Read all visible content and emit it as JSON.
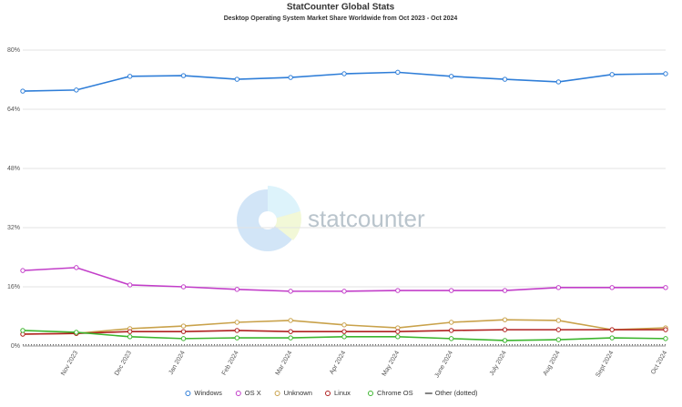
{
  "chart_data": {
    "type": "line",
    "title": "StatCounter Global Stats",
    "subtitle": "Desktop Operating System Market Share Worldwide from Oct 2023 - Oct 2024",
    "watermark": "statcounter",
    "categories": [
      null,
      "Nov 2023",
      "Dec 2023",
      "Jan 2024",
      "Feb 2024",
      "Mar 2024",
      "Apr 2024",
      "May 2024",
      "June 2024",
      "July 2024",
      "Aug 2024",
      "Sept 2024",
      "Oct 2024"
    ],
    "series": [
      {
        "name": "Windows",
        "color": "#2f7ed8",
        "values": [
          68.9,
          69.2,
          72.9,
          73.1,
          72.1,
          72.6,
          73.6,
          74.0,
          72.9,
          72.1,
          71.4,
          73.4,
          73.6
        ]
      },
      {
        "name": "OS X",
        "color": "#c23ec9",
        "values": [
          20.4,
          21.2,
          16.5,
          16.0,
          15.3,
          14.8,
          14.8,
          15.0,
          15.0,
          15.0,
          15.8,
          15.8,
          15.8
        ]
      },
      {
        "name": "Unknown",
        "color": "#c9a24b",
        "values": [
          3.2,
          3.4,
          4.7,
          5.4,
          6.4,
          6.9,
          5.7,
          4.9,
          6.4,
          7.1,
          6.9,
          4.4,
          4.9
        ]
      },
      {
        "name": "Linux",
        "color": "#b02020",
        "values": [
          3.2,
          3.4,
          3.9,
          3.9,
          4.2,
          3.9,
          3.9,
          3.9,
          4.2,
          4.4,
          4.4,
          4.4,
          4.4
        ]
      },
      {
        "name": "Chrome OS",
        "color": "#3cb52e",
        "values": [
          4.2,
          3.7,
          2.5,
          2.0,
          2.2,
          2.2,
          2.5,
          2.5,
          2.0,
          1.5,
          1.7,
          2.2,
          2.0
        ]
      },
      {
        "name": "Other (dotted)",
        "color": "#333333",
        "dotted": true,
        "values": [
          0.3,
          0.3,
          0.3,
          0.3,
          0.3,
          0.3,
          0.3,
          0.3,
          0.3,
          0.3,
          0.3,
          0.3,
          0.3
        ]
      }
    ],
    "ylim": [
      0,
      80
    ],
    "yticks": [
      {
        "value": 0,
        "label": "0%"
      },
      {
        "value": 16,
        "label": "16%"
      },
      {
        "value": 32,
        "label": "32%"
      },
      {
        "value": 48,
        "label": "48%"
      },
      {
        "value": 64,
        "label": "64%"
      },
      {
        "value": 80,
        "label": "80%"
      }
    ],
    "grid": true,
    "legend": "bottom"
  }
}
